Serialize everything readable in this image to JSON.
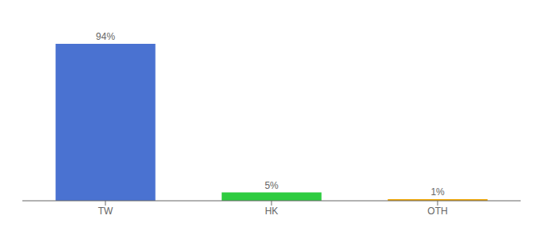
{
  "chart_data": {
    "type": "bar",
    "categories": [
      "TW",
      "HK",
      "OTH"
    ],
    "values": [
      94,
      5,
      1
    ],
    "value_labels": [
      "94%",
      "5%",
      "1%"
    ],
    "colors": [
      "#4a72d1",
      "#2ecc40",
      "#f0a500"
    ],
    "ylim": [
      0,
      105
    ],
    "data_labels": true,
    "tick_labels": "x",
    "grid": false
  }
}
